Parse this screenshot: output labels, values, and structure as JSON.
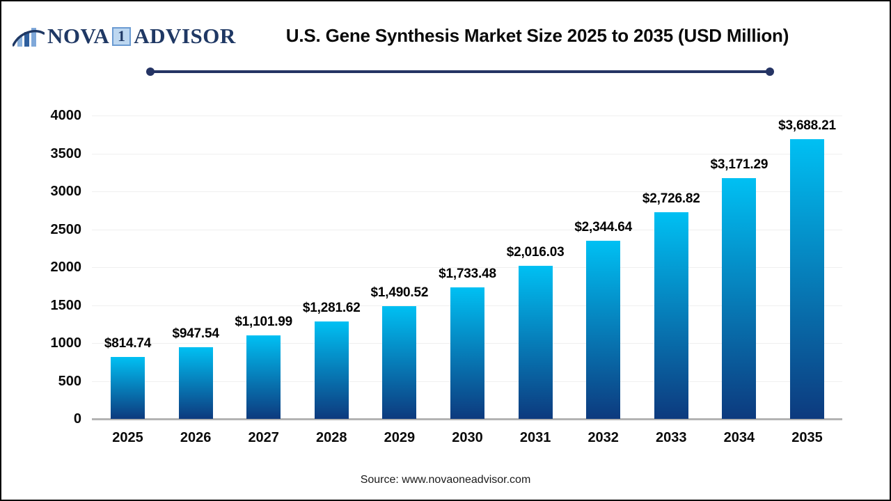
{
  "logo": {
    "icon": "bar-chart-swoosh-icon",
    "part1": "NOVA",
    "boxed": "1",
    "part2": "ADVISOR"
  },
  "header": {
    "title": "U.S. Gene Synthesis Market Size 2025 to 2035 (USD Million)"
  },
  "footer": {
    "source": "Source: www.novaoneadvisor.com"
  },
  "chart_data": {
    "type": "bar",
    "title": "U.S. Gene Synthesis Market Size 2025 to 2035 (USD Million)",
    "categories": [
      "2025",
      "2026",
      "2027",
      "2028",
      "2029",
      "2030",
      "2031",
      "2032",
      "2033",
      "2034",
      "2035"
    ],
    "values": [
      814.74,
      947.54,
      1101.99,
      1281.62,
      1490.52,
      1733.48,
      2016.03,
      2344.64,
      2726.82,
      3171.29,
      3688.21
    ],
    "value_labels": [
      "$814.74",
      "$947.54",
      "$1,101.99",
      "$1,281.62",
      "$1,490.52",
      "$1,733.48",
      "$2,016.03",
      "$2,344.64",
      "$2,726.82",
      "$3,171.29",
      "$3,688.21"
    ],
    "xlabel": "",
    "ylabel": "",
    "ylim": [
      0,
      4000
    ],
    "ytick_interval": 500,
    "yticks": [
      "0",
      "500",
      "1000",
      "1500",
      "2000",
      "2500",
      "3000",
      "3500",
      "4000"
    ],
    "grid": true,
    "legend": false,
    "bar_color_top": "#00c0f3",
    "bar_color_bottom": "#0d3a7e",
    "gridline_color": "#efefef",
    "axis_line_color": "#b3b3b3"
  }
}
